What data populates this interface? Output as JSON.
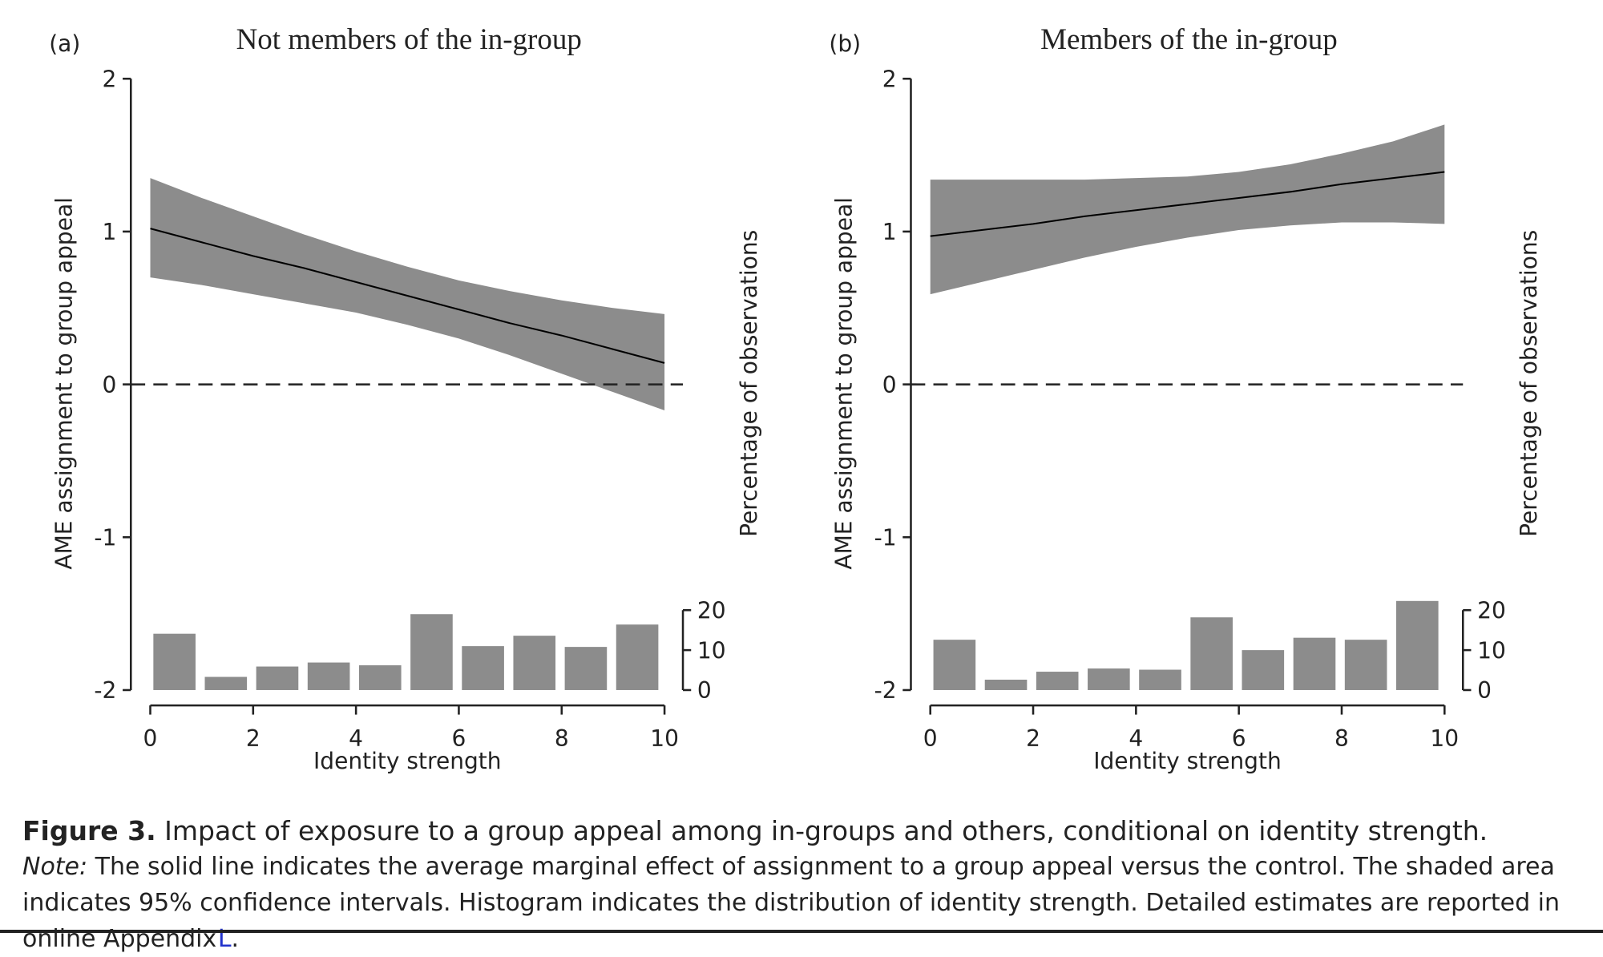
{
  "chart_data": [
    {
      "type": "line",
      "panel_label": "(a)",
      "title": "Not members of the in-group",
      "xlabel": "Identity strength",
      "ylabel": "AME assignment to group appeal",
      "y2label": "Percentage of observations",
      "x": [
        0,
        1,
        2,
        3,
        4,
        5,
        6,
        7,
        8,
        9,
        10
      ],
      "values": [
        1.02,
        0.93,
        0.84,
        0.76,
        0.67,
        0.58,
        0.49,
        0.4,
        0.32,
        0.23,
        0.14
      ],
      "ci_upper": [
        1.35,
        1.22,
        1.1,
        0.98,
        0.87,
        0.77,
        0.68,
        0.61,
        0.55,
        0.5,
        0.46
      ],
      "ci_lower": [
        0.7,
        0.65,
        0.59,
        0.53,
        0.47,
        0.39,
        0.3,
        0.19,
        0.07,
        -0.05,
        -0.17
      ],
      "line_color": "#000000",
      "band_color": "#8c8c8c",
      "hline": 0,
      "hist": {
        "bins": [
          0,
          1,
          2,
          3,
          4,
          5,
          6,
          7,
          8,
          9,
          10
        ],
        "counts": [
          14.1,
          3.3,
          5.9,
          6.9,
          6.2,
          19,
          11,
          13.6,
          10.8,
          16.4
        ],
        "color": "#8c8c8c"
      },
      "xlim": [
        0,
        10
      ],
      "xticks": [
        0,
        2,
        4,
        6,
        8,
        10
      ],
      "ylim": [
        -2,
        2
      ],
      "yticks": [
        -2,
        -1,
        0,
        1,
        2
      ],
      "y2lim": [
        0,
        153
      ],
      "y2ticks": [
        0,
        10,
        20
      ]
    },
    {
      "type": "line",
      "panel_label": "(b)",
      "title": "Members of the in-group",
      "xlabel": "Identity strength",
      "ylabel": "AME assignment to group appeal",
      "y2label": "Percentage of observations",
      "x": [
        0,
        1,
        2,
        3,
        4,
        5,
        6,
        7,
        8,
        9,
        10
      ],
      "values": [
        0.97,
        1.01,
        1.05,
        1.1,
        1.14,
        1.18,
        1.22,
        1.26,
        1.31,
        1.35,
        1.39
      ],
      "ci_upper": [
        1.34,
        1.34,
        1.34,
        1.34,
        1.35,
        1.36,
        1.39,
        1.44,
        1.51,
        1.59,
        1.7
      ],
      "ci_lower": [
        0.59,
        0.67,
        0.75,
        0.83,
        0.9,
        0.96,
        1.01,
        1.04,
        1.06,
        1.06,
        1.05
      ],
      "line_color": "#000000",
      "band_color": "#8c8c8c",
      "hline": 0,
      "hist": {
        "bins": [
          0,
          1,
          2,
          3,
          4,
          5,
          6,
          7,
          8,
          9,
          10
        ],
        "counts": [
          12.6,
          2.6,
          4.6,
          5.4,
          5.1,
          18.2,
          10,
          13.1,
          12.6,
          22.3
        ],
        "color": "#8c8c8c"
      },
      "xlim": [
        0,
        10
      ],
      "xticks": [
        0,
        2,
        4,
        6,
        8,
        10
      ],
      "ylim": [
        -2,
        2
      ],
      "yticks": [
        -2,
        -1,
        0,
        1,
        2
      ],
      "y2lim": [
        0,
        153
      ],
      "y2ticks": [
        0,
        10,
        20
      ]
    }
  ],
  "caption": {
    "label": "Figure 3.",
    "text": "Impact of exposure to a group appeal among in-groups and others, conditional on identity strength.",
    "note_label": "Note:",
    "note_text": "The solid line indicates the average marginal effect of assignment to a group appeal versus the control. The shaded area indicates 95% confidence intervals. Histogram indicates the distribution of identity strength. Detailed estimates are reported in online Appendix",
    "link": "L",
    "end": "."
  }
}
